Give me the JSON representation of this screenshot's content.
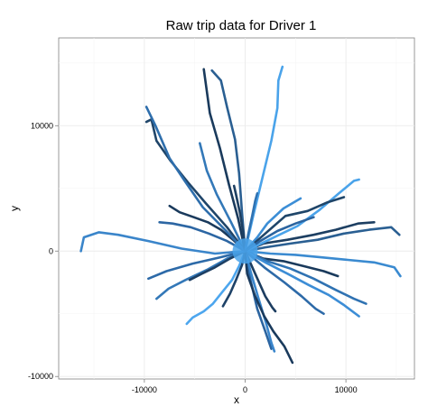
{
  "chart_data": {
    "type": "line",
    "title": "Raw trip data for Driver 1",
    "xlabel": "x",
    "ylabel": "y",
    "xlim": [
      -18500,
      16800
    ],
    "ylim": [
      -10200,
      17000
    ],
    "x_ticks": [
      -10000,
      0,
      10000
    ],
    "x_tick_labels": [
      "-10000",
      "0",
      "10000"
    ],
    "y_ticks": [
      -10000,
      0,
      10000
    ],
    "y_tick_labels": [
      "-10000",
      "0",
      "10000"
    ],
    "grid": true,
    "legend": "none",
    "colors": {
      "panel_background": "#ffffff",
      "grid_major": "#ebebeb",
      "grid_minor": "#f5f5f5",
      "dark_trip": "#1a3a5c",
      "mid_trip": "#2b6aa6",
      "light_trip": "#4aa3ea"
    },
    "series": [
      {
        "color": "#1d3f62",
        "x": [
          0,
          1800,
          4200,
          6800,
          9000,
          11200,
          12800
        ],
        "y": [
          0,
          600,
          900,
          1300,
          1700,
          2200,
          2300
        ]
      },
      {
        "color": "#2a5f92",
        "x": [
          0,
          2000,
          4500,
          7200,
          9800,
          12300,
          14500,
          15300
        ],
        "y": [
          0,
          300,
          600,
          900,
          1400,
          1700,
          1900,
          1300
        ]
      },
      {
        "color": "#3a8ad0",
        "x": [
          0,
          2500,
          5000,
          7600,
          10200,
          12800,
          14800,
          15400
        ],
        "y": [
          0,
          -200,
          -300,
          -500,
          -700,
          -900,
          -1300,
          -2000
        ]
      },
      {
        "color": "#1a3a5c",
        "x": [
          0,
          1800,
          3800,
          5800,
          7800,
          9200
        ],
        "y": [
          0,
          -600,
          -800,
          -1200,
          -1600,
          -2000
        ]
      },
      {
        "color": "#2f72b2",
        "x": [
          0,
          2200,
          4500,
          6800,
          9000,
          10800,
          12000
        ],
        "y": [
          0,
          -800,
          -1400,
          -2200,
          -3100,
          -3800,
          -4200
        ]
      },
      {
        "color": "#3c8dd6",
        "x": [
          0,
          2000,
          4200,
          6300,
          8300,
          9800,
          11300
        ],
        "y": [
          0,
          -900,
          -1800,
          -2700,
          -3500,
          -4300,
          -5200
        ]
      },
      {
        "color": "#2d6aa8",
        "x": [
          0,
          1900,
          3900,
          5600,
          7000,
          7800
        ],
        "y": [
          0,
          -1300,
          -2500,
          -3600,
          -4600,
          -5000
        ]
      },
      {
        "color": "#1c3d60",
        "x": [
          0,
          1000,
          2000,
          2700,
          3000
        ],
        "y": [
          0,
          -1800,
          -3600,
          -4500,
          -4800
        ]
      },
      {
        "color": "#2b64a0",
        "x": [
          0,
          500,
          1200,
          2000,
          2600
        ],
        "y": [
          0,
          -2200,
          -4600,
          -6400,
          -7800
        ]
      },
      {
        "color": "#3a86cc",
        "x": [
          0,
          600,
          1300,
          2100,
          2600,
          2900
        ],
        "y": [
          0,
          -1800,
          -3700,
          -5800,
          -7300,
          -8000
        ]
      },
      {
        "color": "#1a3a5c",
        "x": [
          0,
          200,
          1000,
          1900,
          2800,
          3900,
          4700
        ],
        "y": [
          0,
          -1800,
          -3600,
          -5200,
          -6400,
          -7600,
          -8900
        ]
      },
      {
        "color": "#4da6ee",
        "x": [
          0,
          -600,
          -1300,
          -2300,
          -3200,
          -4100,
          -5200,
          -5800
        ],
        "y": [
          0,
          -1200,
          -2300,
          -3300,
          -4200,
          -4800,
          -5300,
          -5800
        ]
      },
      {
        "color": "#1e4268",
        "x": [
          0,
          -300,
          -900,
          -1500,
          -2200
        ],
        "y": [
          0,
          -1100,
          -2300,
          -3400,
          -4400
        ]
      },
      {
        "color": "#3378b8",
        "x": [
          0,
          -1800,
          -3800,
          -5900,
          -7600,
          -8800
        ],
        "y": [
          0,
          -600,
          -1500,
          -2300,
          -3000,
          -3800
        ]
      },
      {
        "color": "#1d3f63",
        "x": [
          0,
          -1500,
          -3000,
          -4300,
          -5500
        ],
        "y": [
          0,
          -600,
          -1300,
          -1800,
          -2300
        ]
      },
      {
        "color": "#2d6aa8",
        "x": [
          0,
          -2500,
          -5200,
          -7800,
          -9600
        ],
        "y": [
          0,
          -500,
          -1000,
          -1600,
          -2200
        ]
      },
      {
        "color": "#3a85ca",
        "x": [
          0,
          -3000,
          -6300,
          -9600,
          -12600,
          -14500,
          -16000,
          -16300
        ],
        "y": [
          0,
          -200,
          200,
          800,
          1300,
          1500,
          1100,
          0
        ]
      },
      {
        "color": "#2c66a3",
        "x": [
          0,
          -1800,
          -3600,
          -5400,
          -7200,
          -8500
        ],
        "y": [
          0,
          800,
          1400,
          1900,
          2200,
          2300
        ]
      },
      {
        "color": "#1a3a5c",
        "x": [
          0,
          -1200,
          -2400,
          -3700,
          -5100,
          -6500,
          -7500
        ],
        "y": [
          0,
          900,
          1700,
          2300,
          2700,
          3100,
          3600
        ]
      },
      {
        "color": "#3378b8",
        "x": [
          0,
          -1400,
          -2800,
          -3800,
          -4500
        ],
        "y": [
          0,
          2300,
          4500,
          6400,
          8600
        ]
      },
      {
        "color": "#1f4569",
        "x": [
          0,
          -1800,
          -3900,
          -5700,
          -7400,
          -8800,
          -9300,
          -9800
        ],
        "y": [
          0,
          1900,
          3800,
          5500,
          7200,
          8800,
          10500,
          10300
        ]
      },
      {
        "color": "#2e6eac",
        "x": [
          0,
          -2000,
          -4200,
          -6000,
          -7500,
          -8900,
          -9800
        ],
        "y": [
          0,
          1700,
          3500,
          5600,
          7400,
          10000,
          11500
        ]
      },
      {
        "color": "#1a3a5c",
        "x": [
          0,
          -700,
          -1600,
          -2500,
          -3500,
          -4100
        ],
        "y": [
          0,
          2600,
          5300,
          8200,
          11000,
          14500
        ]
      },
      {
        "color": "#2a5f92",
        "x": [
          0,
          -300,
          -600,
          -1000,
          -1800,
          -2400,
          -3300
        ],
        "y": [
          0,
          3000,
          6200,
          8900,
          11500,
          13600,
          14400
        ]
      },
      {
        "color": "#4aa3ea",
        "x": [
          0,
          800,
          1700,
          2600,
          3200,
          3300,
          3700
        ],
        "y": [
          0,
          2800,
          5800,
          8800,
          11400,
          13600,
          14700
        ]
      },
      {
        "color": "#1d3f62",
        "x": [
          0,
          -200,
          -500,
          -900,
          -1100
        ],
        "y": [
          0,
          1500,
          3000,
          4500,
          5200
        ]
      },
      {
        "color": "#2f72b2",
        "x": [
          0,
          300,
          700,
          1000,
          1200
        ],
        "y": [
          0,
          1300,
          2800,
          4000,
          4600
        ]
      },
      {
        "color": "#3c8ed6",
        "x": [
          0,
          1200,
          2200,
          3800,
          5500
        ],
        "y": [
          0,
          1100,
          2200,
          3400,
          4200
        ]
      },
      {
        "color": "#4aa3ea",
        "x": [
          0,
          2600,
          5200,
          7400,
          9300,
          10800,
          11300
        ],
        "y": [
          0,
          1000,
          2000,
          3300,
          4600,
          5600,
          5700
        ]
      },
      {
        "color": "#1f4569",
        "x": [
          0,
          2000,
          4000,
          6200,
          8200,
          9800
        ],
        "y": [
          0,
          1400,
          2800,
          3200,
          3900,
          4300
        ]
      },
      {
        "color": "#2b64a0",
        "x": [
          0,
          1500,
          3200,
          5000,
          6800
        ],
        "y": [
          0,
          800,
          1600,
          2200,
          2700
        ]
      }
    ]
  }
}
